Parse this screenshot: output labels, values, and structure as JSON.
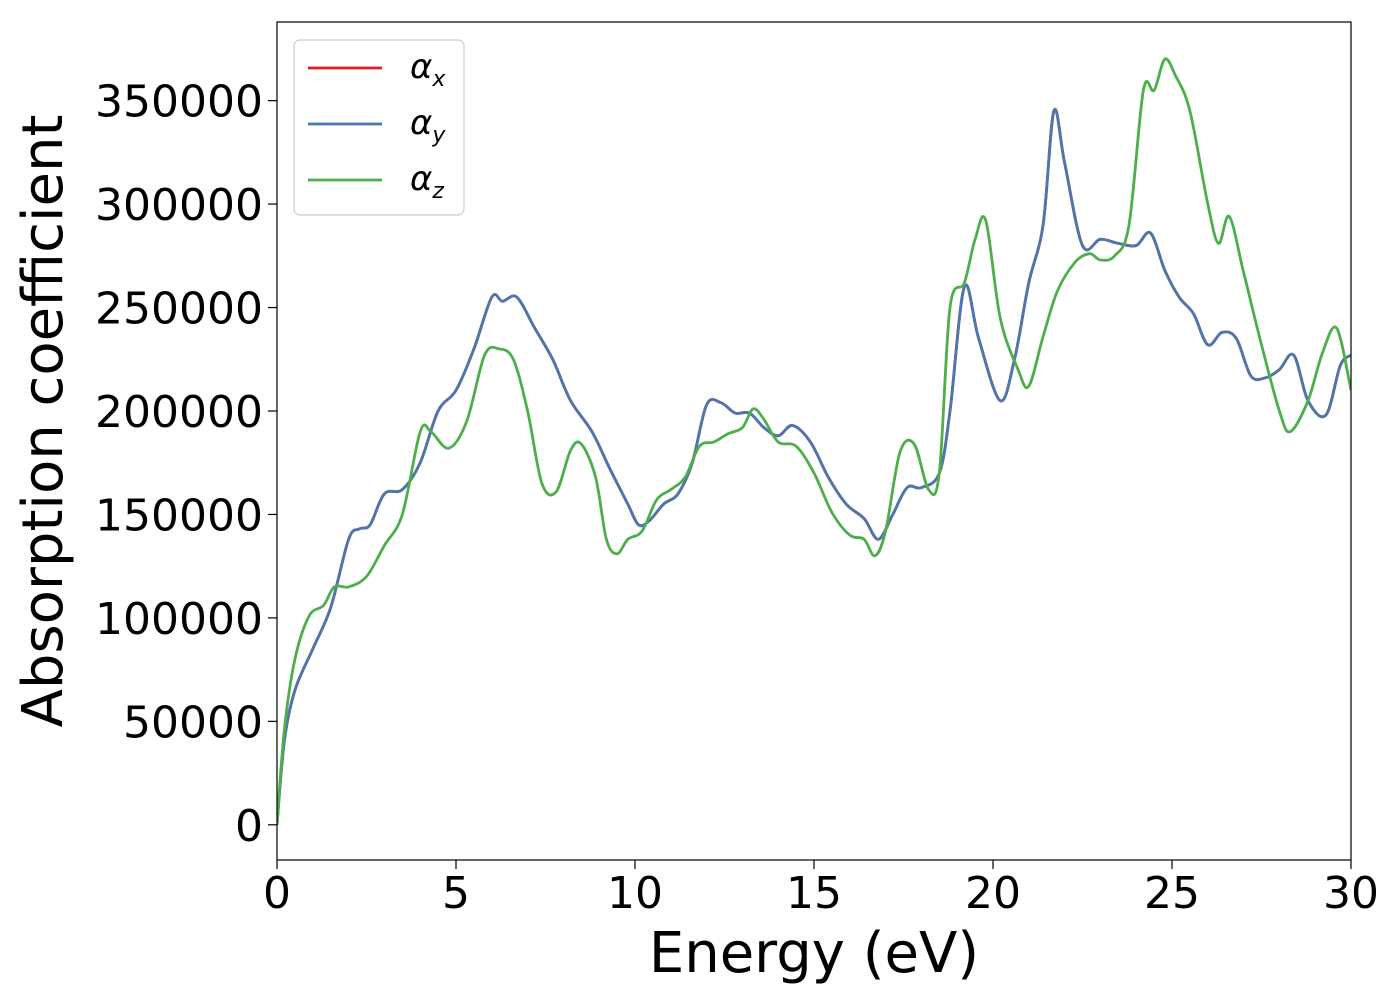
{
  "chart_data": {
    "type": "line",
    "xlabel": "Energy (eV)",
    "ylabel": "Absorption coefficient",
    "xlim": [
      0,
      30
    ],
    "ylim": [
      -17000,
      388000
    ],
    "xticks": [
      0,
      5,
      10,
      15,
      20,
      25,
      30
    ],
    "yticks": [
      0,
      50000,
      100000,
      150000,
      200000,
      250000,
      300000,
      350000
    ],
    "legend_position": "top-left",
    "grid": false,
    "series": [
      {
        "name": "α",
        "subscript": "x",
        "color": "#e41a1c",
        "x": [
          0,
          0.2,
          0.5,
          1.0,
          1.5,
          2.0,
          2.3,
          2.6,
          3.0,
          3.5,
          4.0,
          4.5,
          5.0,
          5.5,
          6.0,
          6.3,
          6.7,
          7.2,
          7.7,
          8.2,
          8.8,
          9.3,
          9.8,
          10.1,
          10.4,
          10.8,
          11.2,
          11.6,
          12.0,
          12.4,
          12.8,
          13.2,
          13.6,
          14.0,
          14.4,
          14.9,
          15.4,
          15.9,
          16.4,
          16.8,
          17.2,
          17.6,
          18.0,
          18.5,
          18.8,
          19.2,
          19.6,
          20.2,
          20.6,
          21.0,
          21.4,
          21.7,
          22.0,
          22.5,
          23.0,
          23.5,
          24.0,
          24.4,
          24.8,
          25.2,
          25.6,
          26.0,
          26.4,
          26.8,
          27.2,
          27.6,
          28.0,
          28.4,
          28.8,
          29.3,
          29.7,
          30.0
        ],
        "values": [
          0,
          40000,
          65000,
          85000,
          105000,
          138000,
          143000,
          145000,
          160000,
          162000,
          175000,
          200000,
          210000,
          230000,
          255000,
          253000,
          255000,
          240000,
          225000,
          205000,
          190000,
          172000,
          155000,
          145000,
          147000,
          155000,
          160000,
          175000,
          203000,
          204000,
          199000,
          199000,
          192000,
          188000,
          193000,
          185000,
          168000,
          155000,
          148000,
          138000,
          150000,
          163000,
          163000,
          170000,
          200000,
          260000,
          235000,
          205000,
          225000,
          262000,
          290000,
          345000,
          320000,
          280000,
          283000,
          281000,
          280000,
          286000,
          268000,
          255000,
          247000,
          232000,
          238000,
          235000,
          217000,
          216000,
          220000,
          227000,
          205000,
          198000,
          222000,
          227000
        ]
      },
      {
        "name": "α",
        "subscript": "y",
        "color": "#4a77b0",
        "x": [
          0,
          0.2,
          0.5,
          1.0,
          1.5,
          2.0,
          2.3,
          2.6,
          3.0,
          3.5,
          4.0,
          4.5,
          5.0,
          5.5,
          6.0,
          6.3,
          6.7,
          7.2,
          7.7,
          8.2,
          8.8,
          9.3,
          9.8,
          10.1,
          10.4,
          10.8,
          11.2,
          11.6,
          12.0,
          12.4,
          12.8,
          13.2,
          13.6,
          14.0,
          14.4,
          14.9,
          15.4,
          15.9,
          16.4,
          16.8,
          17.2,
          17.6,
          18.0,
          18.5,
          18.8,
          19.2,
          19.6,
          20.2,
          20.6,
          21.0,
          21.4,
          21.7,
          22.0,
          22.5,
          23.0,
          23.5,
          24.0,
          24.4,
          24.8,
          25.2,
          25.6,
          26.0,
          26.4,
          26.8,
          27.2,
          27.6,
          28.0,
          28.4,
          28.8,
          29.3,
          29.7,
          30.0
        ],
        "values": [
          0,
          40000,
          65000,
          85000,
          105000,
          138000,
          143000,
          145000,
          160000,
          162000,
          175000,
          200000,
          210000,
          230000,
          255000,
          253000,
          255000,
          240000,
          225000,
          205000,
          190000,
          172000,
          155000,
          145000,
          147000,
          155000,
          160000,
          175000,
          203000,
          204000,
          199000,
          199000,
          192000,
          188000,
          193000,
          185000,
          168000,
          155000,
          148000,
          138000,
          150000,
          163000,
          163000,
          170000,
          200000,
          260000,
          235000,
          205000,
          225000,
          262000,
          290000,
          345000,
          320000,
          280000,
          283000,
          281000,
          280000,
          286000,
          268000,
          255000,
          247000,
          232000,
          238000,
          235000,
          217000,
          216000,
          220000,
          227000,
          205000,
          198000,
          222000,
          227000
        ]
      },
      {
        "name": "α",
        "subscript": "z",
        "color": "#4daf4a",
        "x": [
          0,
          0.2,
          0.5,
          0.9,
          1.3,
          1.6,
          2.0,
          2.5,
          3.0,
          3.5,
          4.0,
          4.3,
          4.8,
          5.3,
          5.8,
          6.2,
          6.6,
          7.0,
          7.4,
          7.8,
          8.2,
          8.5,
          8.9,
          9.2,
          9.5,
          9.8,
          10.2,
          10.6,
          11.0,
          11.4,
          11.8,
          12.2,
          12.6,
          13.0,
          13.3,
          13.6,
          14.0,
          14.5,
          15.0,
          15.5,
          16.0,
          16.4,
          16.7,
          17.0,
          17.4,
          17.8,
          18.2,
          18.5,
          18.8,
          19.2,
          19.5,
          19.8,
          20.2,
          20.7,
          21.0,
          21.4,
          21.8,
          22.3,
          22.7,
          23.0,
          23.4,
          23.8,
          24.2,
          24.5,
          24.8,
          25.1,
          25.5,
          26.0,
          26.3,
          26.6,
          27.0,
          27.5,
          28.0,
          28.3,
          28.8,
          29.2,
          29.6,
          30.0
        ],
        "values": [
          0,
          45000,
          80000,
          101000,
          106000,
          115000,
          115000,
          120000,
          135000,
          150000,
          190000,
          190000,
          182000,
          195000,
          227000,
          230000,
          225000,
          200000,
          165000,
          161000,
          181000,
          184000,
          168000,
          138000,
          131000,
          138000,
          142000,
          157000,
          162000,
          168000,
          183000,
          185000,
          189000,
          192000,
          201000,
          196000,
          185000,
          183000,
          170000,
          151000,
          140000,
          138000,
          130000,
          142000,
          180000,
          184000,
          162000,
          170000,
          250000,
          262000,
          283000,
          292000,
          245000,
          220000,
          212000,
          236000,
          258000,
          272000,
          276000,
          273000,
          275000,
          290000,
          355000,
          355000,
          370000,
          362000,
          345000,
          300000,
          281000,
          294000,
          267000,
          232000,
          200000,
          190000,
          205000,
          228000,
          240000,
          210000
        ]
      }
    ]
  }
}
